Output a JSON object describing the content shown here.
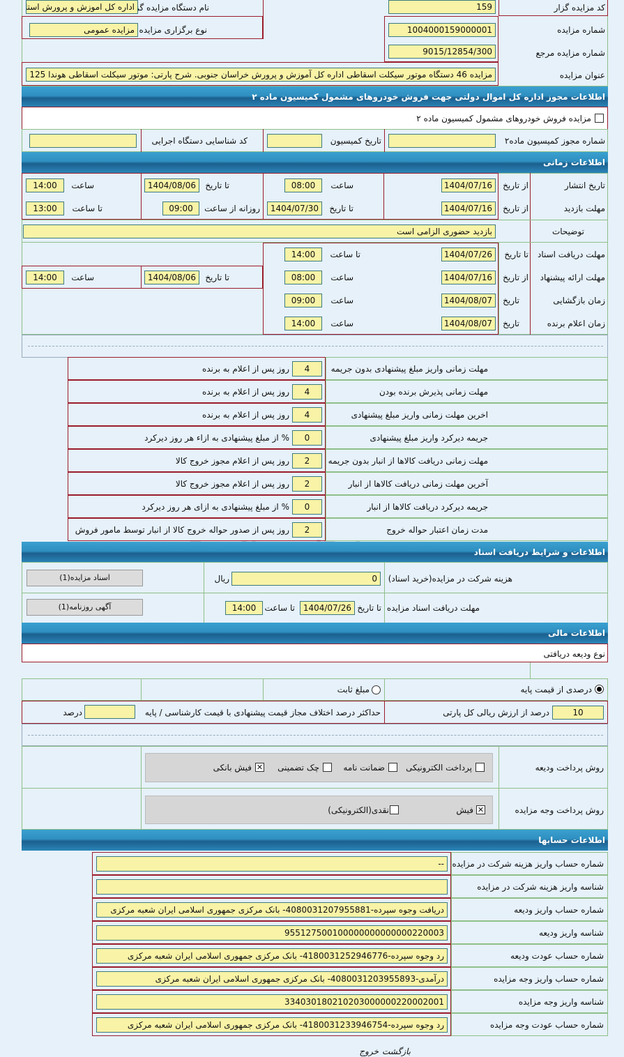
{
  "general": {
    "code_label": "کد مزایده گزار",
    "code": "159",
    "org_label": "نام دستگاه مزایده گزار",
    "org": "اداره کل اموزش و پرورش استا",
    "number_label": "شماره مزایده",
    "number": "1004000159000001",
    "type_label": "نوع برگزاری مزایده",
    "type": "مزایده عمومی",
    "ref_label": "شماره مزایده مرجع",
    "ref": "9015/12854/300",
    "title_label": "عنوان مزایده",
    "title": "مزایده 46 دستگاه موتور سیکلت اسقاطی اداره کل آموزش و پرورش خراسان جنوبی. شرح پارتی: موتور سیکلت اسقاطی هوندا 125"
  },
  "permit": {
    "header": "اطلاعات مجوز اداره کل اموال دولتی جهت فروش خودروهای مشمول کمیسیون ماده ۲",
    "checkbox_label": "مزایده فروش خودروهای مشمول کمیسیون ماده ۲",
    "checked": false,
    "permit_no_label": "شماره مجوز کمیسیون ماده۲",
    "permit_no": "",
    "date_label": "تاریخ کمیسیون",
    "date": "",
    "exec_id_label": "کد شناسایی دستگاه اجرایی",
    "exec_id": ""
  },
  "time": {
    "header": "اطلاعات زمانی",
    "publish": {
      "label": "تاریخ انتشار",
      "from_label": "از تاریخ",
      "from": "1404/07/16",
      "time_label": "ساعت",
      "time": "08:00",
      "to_label": "تا تاریخ",
      "to": "1404/08/06",
      "to_time_label": "ساعت",
      "to_time": "14:00"
    },
    "visit": {
      "label": "مهلت بازدید",
      "from_label": "از تاریخ",
      "from": "1404/07/16",
      "to_label": "تا تاریخ",
      "to": "1404/07/30",
      "daily_label": "روزانه از ساعت",
      "daily": "09:00",
      "until_label": "تا ساعت",
      "until": "13:00"
    },
    "notes": {
      "label": "توضیحات",
      "value": "بازدید حضوری الزامی است"
    },
    "docs": {
      "label": "مهلت دریافت اسناد",
      "to_label": "تا تاریخ",
      "to": "1404/07/26",
      "time_label": "تا ساعت",
      "time": "14:00"
    },
    "offer": {
      "label": "مهلت ارائه پیشنهاد",
      "from_label": "از تاریخ",
      "from": "1404/07/16",
      "time_label": "ساعت",
      "time": "08:00",
      "to_label": "تا تاریخ",
      "to": "1404/08/06",
      "to_time_label": "ساعت",
      "to_time": "14:00"
    },
    "opening": {
      "label": "زمان بازگشایی",
      "date_label": "تاریخ",
      "date": "1404/08/07",
      "time_label": "ساعت",
      "time": "09:00"
    },
    "winner": {
      "label": "زمان اعلام برنده",
      "date_label": "تاریخ",
      "date": "1404/08/07",
      "time_label": "ساعت",
      "time": "14:00"
    }
  },
  "deadlines": [
    {
      "label": "مهلت زمانی واریز مبلغ پیشنهادی بدون جریمه",
      "value": "4",
      "unit": "روز پس از اعلام به برنده"
    },
    {
      "label": "مهلت زمانی پذیرش برنده بودن",
      "value": "4",
      "unit": "روز پس از اعلام به برنده"
    },
    {
      "label": "اخرین مهلت زمانی واریز مبلغ پیشنهادی",
      "value": "4",
      "unit": "روز پس از اعلام به برنده"
    },
    {
      "label": "جریمه دیرکرد واریز مبلغ پیشنهادی",
      "value": "0",
      "unit": "% از مبلغ پیشنهادی به ازاء هر روز دیرکرد"
    },
    {
      "label": "مهلت زمانی دریافت کالاها از انبار بدون جریمه",
      "value": "2",
      "unit": "روز پس از اعلام مجوز خروج کالا"
    },
    {
      "label": "آخرین مهلت زمانی دریافت کالاها از انبار",
      "value": "2",
      "unit": "روز پس از اعلام مجوز خروج کالا"
    },
    {
      "label": "جریمه دیرکرد دریافت کالاها از انبار",
      "value": "0",
      "unit": "% از مبلغ پیشنهادی به ازای هر روز دیرکرد"
    },
    {
      "label": "مدت زمان اعتبار حواله خروج",
      "value": "2",
      "unit": "روز پس از صدور حواله خروج کالا از انبار توسط مامور فروش"
    }
  ],
  "documents": {
    "header": "اطلاعات و شرایط دریافت اسناد",
    "fee_label": "هزینه شرکت در مزایده(خرید اسناد)",
    "fee": "0",
    "fee_unit": "ریال",
    "docs_button": "اسناد مزایده(1)",
    "deadline_label": "مهلت دریافت اسناد مزایده",
    "to_label": "تا تاریخ",
    "to": "1404/07/26",
    "time_label": "تا ساعت",
    "time": "14:00",
    "ad_button": "آگهی روزنامه(1)"
  },
  "finance": {
    "header": "اطلاعات مالی",
    "deposit_type_label": "نوع ودیعه دریافتی",
    "radio_percent": "درصدی از قیمت پایه",
    "radio_fixed": "مبلغ ثابت",
    "selected": "percent",
    "percent": "10",
    "percent_label": "درصد از ارزش ریالی کل پارتی",
    "max_diff_label": "حداکثر درصد اختلاف مجاز قیمت پیشنهادی با قیمت کارشناسی / پایه",
    "max_diff": "",
    "max_diff_unit": "درصد",
    "deposit_method_label": "روش پرداخت ودیعه",
    "deposit_methods": [
      {
        "label": "پرداخت الکترونیکی",
        "checked": false
      },
      {
        "label": "ضمانت نامه",
        "checked": false
      },
      {
        "label": "چک تضمینی",
        "checked": false
      },
      {
        "label": "فیش بانکی",
        "checked": true
      }
    ],
    "payment_method_label": "روش پرداخت وجه مزایده",
    "payment_methods": [
      {
        "label": "فیش",
        "checked": true
      },
      {
        "label": "نقدی(الکترونیکی)",
        "checked": false
      }
    ]
  },
  "accounts": {
    "header": "اطلاعات حسابها",
    "rows": [
      {
        "label": "شماره حساب واریز هزینه شرکت در مزایده",
        "value": "--"
      },
      {
        "label": "شناسه واریز هزینه شرکت در مزایده",
        "value": ""
      },
      {
        "label": "شماره حساب واریز ودیعه",
        "value": "دریافت وجوه سپرده-4080031207955881- بانک مرکزی جمهوری اسلامی ایران شعبه مرکزی"
      },
      {
        "label": "شناسه واریز ودیعه",
        "value": "955127500100000000000000220003"
      },
      {
        "label": "شماره حساب عودت ودیعه",
        "value": "رد وجوه سپرده-4180031252946776- بانک مرکزی جمهوری اسلامی ایران شعبه مرکزی"
      },
      {
        "label": "شماره حساب واریز وجه مزایده",
        "value": "درآمدی-4080031203955893- بانک مرکزی جمهوری اسلامی ایران شعبه مرکزی"
      },
      {
        "label": "شناسه واریز وجه مزایده",
        "value": "334030180210203000000220002001"
      },
      {
        "label": "شماره حساب عودت وجه مزایده",
        "value": "رد وجوه سپرده-4180031233946754- بانک مرکزی جمهوری اسلامی ایران شعبه مرکزی"
      }
    ]
  },
  "footer": {
    "back": "بازگشت",
    "exit": "خروج"
  },
  "watermark": {
    "brand": "ParsNamadData",
    "line1": "مرکز آموزش اطلاعات پارس نماد داده ها",
    "line2": "پایگاه اطلاع رسانی مناقصه و مزایده",
    "phone": "۰۲۱-۸۸۳۴۹۶۷۰-۵"
  }
}
